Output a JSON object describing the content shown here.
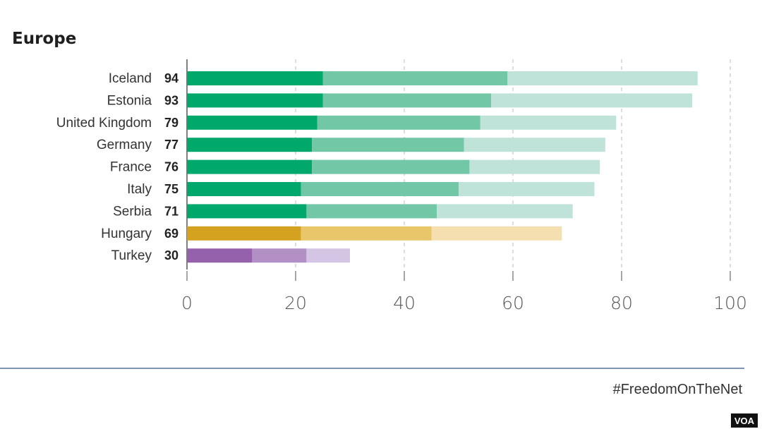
{
  "chart_data": {
    "type": "bar",
    "orientation": "horizontal",
    "stacked": true,
    "title": "Europe",
    "categories": [
      "Iceland",
      "Estonia",
      "United Kingdom",
      "Germany",
      "France",
      "Italy",
      "Serbia",
      "Hungary",
      "Turkey"
    ],
    "totals": [
      94,
      93,
      79,
      77,
      76,
      75,
      71,
      69,
      30
    ],
    "segments": [
      [
        25,
        34,
        35
      ],
      [
        25,
        31,
        37
      ],
      [
        24,
        30,
        25
      ],
      [
        23,
        28,
        26
      ],
      [
        23,
        29,
        24
      ],
      [
        21,
        29,
        25
      ],
      [
        22,
        24,
        25
      ],
      [
        21,
        24,
        24
      ],
      [
        12,
        10,
        8
      ]
    ],
    "colors": [
      [
        "#00a86b",
        "#72c7a6",
        "#bfe3d8"
      ],
      [
        "#00a86b",
        "#72c7a6",
        "#bfe3d8"
      ],
      [
        "#00a86b",
        "#72c7a6",
        "#bfe3d8"
      ],
      [
        "#00a86b",
        "#72c7a6",
        "#bfe3d8"
      ],
      [
        "#00a86b",
        "#72c7a6",
        "#bfe3d8"
      ],
      [
        "#00a86b",
        "#72c7a6",
        "#bfe3d8"
      ],
      [
        "#00a86b",
        "#72c7a6",
        "#bfe3d8"
      ],
      [
        "#d4a21e",
        "#eac66a",
        "#f5dfb0"
      ],
      [
        "#9561ad",
        "#b290c6",
        "#d3c5e3"
      ]
    ],
    "xlim": [
      0,
      100
    ],
    "xticks": [
      "0",
      "20",
      "40",
      "60",
      "80",
      "100"
    ],
    "grid": "vertical-dashed",
    "legend": "none"
  },
  "footer": {
    "hashtag": "#FreedomOnTheNet",
    "badge": "VOA"
  }
}
